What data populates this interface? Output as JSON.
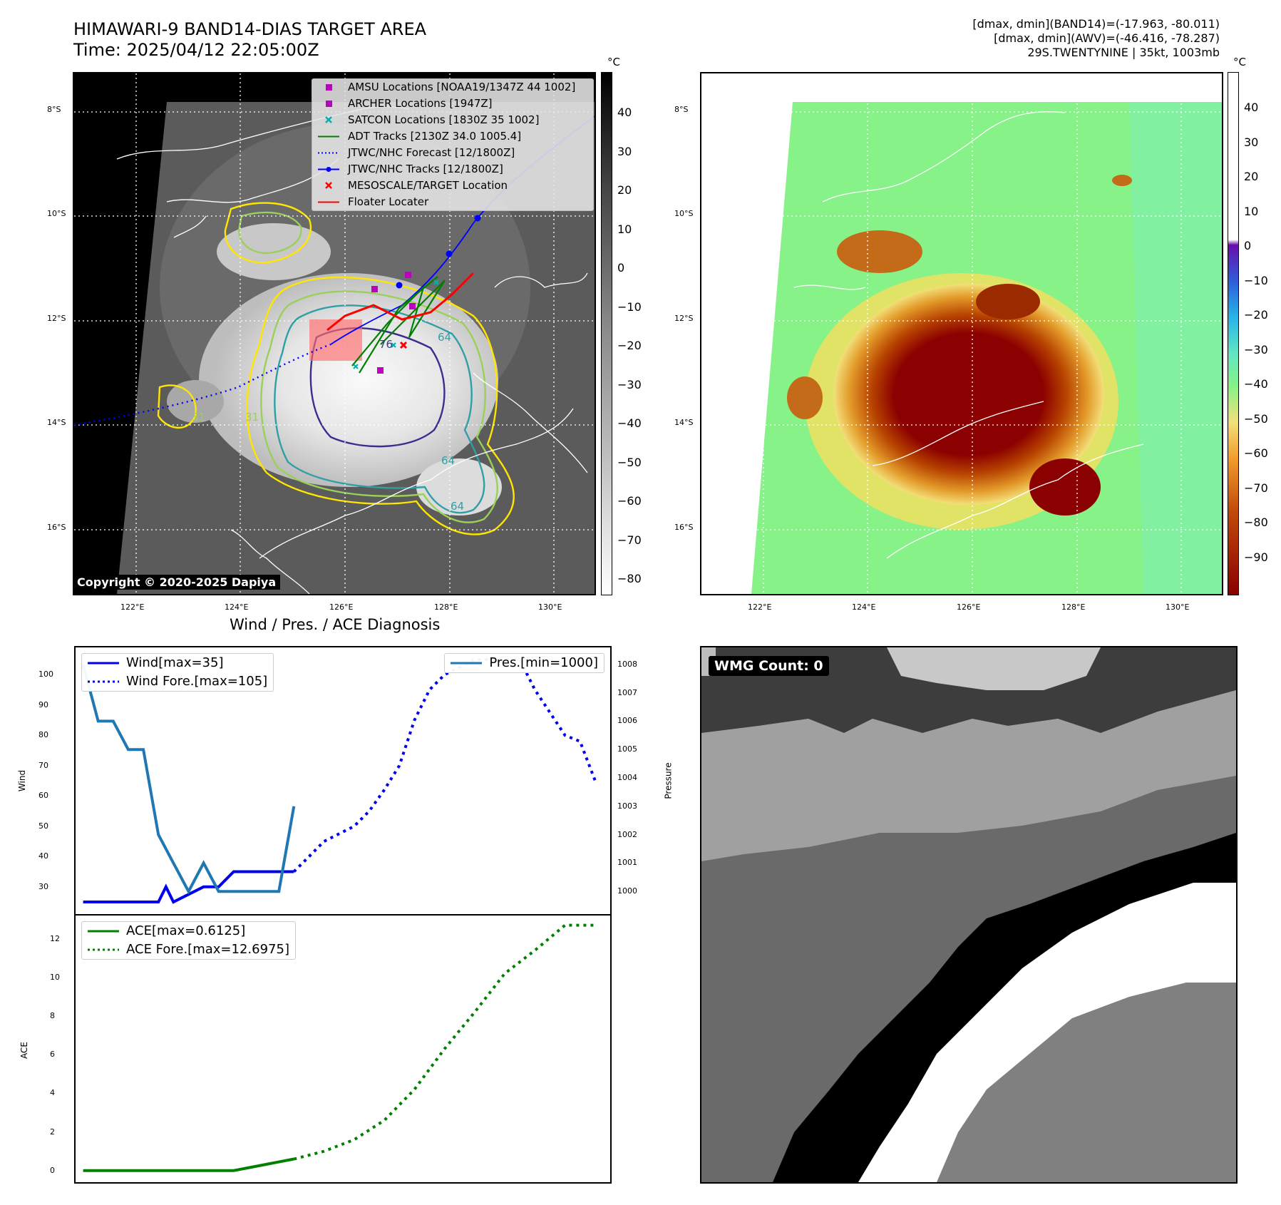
{
  "main_title": "HIMAWARI-9 BAND14-DIAS TARGET AREA",
  "time_label": "Time: 2025/04/12 22:05:00Z",
  "right_info": {
    "line1": "[dmax, dmin](BAND14)=(-17.963, -80.011)",
    "line2": "[dmax, dmin](AWV)=(-46.416, -78.287)",
    "line3": "29S.TWENTYNINE | 35kt, 1003mb"
  },
  "copyright": "Copyright © 2020-2025 Dapiya",
  "map": {
    "lat_ticks": [
      "8°S",
      "10°S",
      "12°S",
      "14°S",
      "16°S"
    ],
    "lon_ticks": [
      "122°E",
      "124°E",
      "126°E",
      "128°E",
      "130°E"
    ],
    "contour_labels": [
      "76",
      "64",
      "64",
      "64",
      "31",
      "31"
    ],
    "legend": [
      {
        "label": "AMSU Locations [NOAA19/1347Z 44 1002]",
        "symbol": "square",
        "color": "#c000c0"
      },
      {
        "label": "ARCHER Locations [1947Z]",
        "symbol": "square",
        "color": "#c000c0"
      },
      {
        "label": "SATCON Locations [1830Z 35 1002]",
        "symbol": "x",
        "color": "#00b0b0"
      },
      {
        "label": "ADT Tracks [2130Z 34.0 1005.4]",
        "symbol": "line",
        "color": "#008000"
      },
      {
        "label": "JTWC/NHC Forecast [12/1800Z]",
        "symbol": "dotted",
        "color": "#0000ff"
      },
      {
        "label": "JTWC/NHC Tracks [12/1800Z]",
        "symbol": "line-dot",
        "color": "#0000ff"
      },
      {
        "label": "MESOSCALE/TARGET Location",
        "symbol": "x",
        "color": "#ff0000"
      },
      {
        "label": "Floater Locater",
        "symbol": "line",
        "color": "#ff0000"
      }
    ]
  },
  "colorbar_left": {
    "unit": "°C",
    "ticks": [
      "40",
      "30",
      "20",
      "10",
      "0",
      "−10",
      "−20",
      "−30",
      "−40",
      "−50",
      "−60",
      "−70",
      "−80"
    ]
  },
  "colorbar_right": {
    "unit": "°C",
    "ticks": [
      "40",
      "30",
      "20",
      "10",
      "0",
      "−10",
      "−20",
      "−30",
      "−40",
      "−50",
      "−60",
      "−70",
      "−80",
      "−90"
    ]
  },
  "wmg_count": "WMG Count: 0",
  "diagnosis_title": "Wind / Pres. / ACE Diagnosis",
  "chart_data": [
    {
      "type": "line",
      "title": "Wind / Pres. / ACE Diagnosis",
      "ylabel": "Wind",
      "y2label": "Pressure",
      "ylim": [
        21,
        109
      ],
      "y2lim": [
        999.2,
        1008.6
      ],
      "yticks": [
        "100",
        "90",
        "80",
        "70",
        "60",
        "50",
        "40",
        "30"
      ],
      "y2ticks": [
        "1008",
        "1007",
        "1006",
        "1005",
        "1004",
        "1003",
        "1002",
        "1001",
        "1000"
      ],
      "series": [
        {
          "name": "Wind[max=35]",
          "color": "#0000ee",
          "style": "solid",
          "axis": "left",
          "x": [
            0,
            4,
            8,
            10,
            11,
            12,
            16,
            18,
            20,
            24,
            28
          ],
          "y": [
            25,
            25,
            25,
            25,
            30,
            25,
            30,
            30,
            35,
            35,
            35
          ]
        },
        {
          "name": "Wind Fore.[max=105]",
          "color": "#0000ee",
          "style": "dotted",
          "axis": "left",
          "x": [
            28,
            30,
            32,
            36,
            38,
            40,
            42,
            44,
            46,
            48,
            52,
            54,
            56,
            58,
            60,
            64,
            66,
            68
          ],
          "y": [
            35,
            40,
            45,
            50,
            55,
            62,
            70,
            85,
            95,
            100,
            105,
            105,
            105,
            105,
            95,
            80,
            78,
            65
          ]
        },
        {
          "name": "Pres.[min=1000]",
          "color": "#1f77b4",
          "style": "solid",
          "axis": "right",
          "x": [
            0,
            2,
            4,
            6,
            8,
            10,
            12,
            14,
            16,
            18,
            20,
            22,
            24,
            26,
            28
          ],
          "y": [
            1008,
            1006,
            1006,
            1005,
            1005,
            1002,
            1001,
            1000,
            1001,
            1000,
            1000,
            1000,
            1000,
            1000,
            1003
          ]
        }
      ]
    },
    {
      "type": "line",
      "ylabel": "ACE",
      "ylim": [
        -0.6,
        13.2
      ],
      "yticks": [
        "12",
        "10",
        "8",
        "6",
        "4",
        "2",
        "0"
      ],
      "series": [
        {
          "name": "ACE[max=0.6125]",
          "color": "#008000",
          "style": "solid",
          "x": [
            0,
            8,
            16,
            20,
            24,
            28
          ],
          "y": [
            0,
            0,
            0,
            0,
            0.3,
            0.6
          ]
        },
        {
          "name": "ACE Fore.[max=12.6975]",
          "color": "#008000",
          "style": "dotted",
          "x": [
            28,
            32,
            36,
            40,
            44,
            48,
            52,
            56,
            60,
            64,
            68
          ],
          "y": [
            0.6,
            1.0,
            1.6,
            2.6,
            4.2,
            6.3,
            8.2,
            10.2,
            11.4,
            12.7,
            12.7
          ]
        }
      ]
    }
  ]
}
